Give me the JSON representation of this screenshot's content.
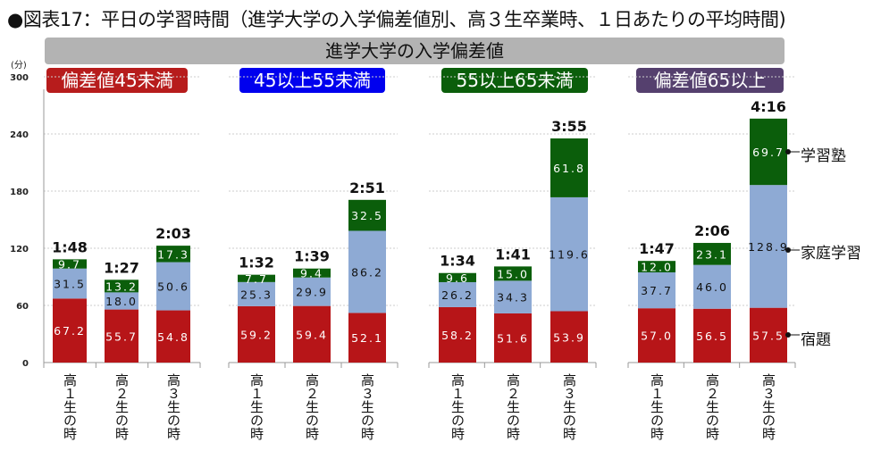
{
  "title": "●図表17：平日の学習時間（進学大学の入学偏差値別、高３生卒業時、１日あたりの平均時間)",
  "banner": "進学大学の入学偏差値",
  "groups": [
    {
      "label": "偏差値45未満",
      "color": "#b71c1c"
    },
    {
      "label": "45以上55未満",
      "color": "#0000ee"
    },
    {
      "label": "55以上65未満",
      "color": "#0b5e0b"
    },
    {
      "label": "偏差値65以上",
      "color": "#55406e"
    }
  ],
  "chart_data": {
    "type": "bar",
    "stacked": true,
    "ylabel": "(分)",
    "ylim": [
      0,
      300
    ],
    "yticks": [
      0,
      60,
      120,
      180,
      240,
      300
    ],
    "categories": [
      "高１生の時",
      "高２生の時",
      "高３生の時"
    ],
    "series": [
      {
        "name": "宿題",
        "color": "#b71518",
        "values": [
          [
            67.2,
            55.7,
            54.8
          ],
          [
            59.2,
            59.4,
            52.1
          ],
          [
            58.2,
            51.6,
            53.9
          ],
          [
            57.0,
            56.5,
            57.5
          ]
        ]
      },
      {
        "name": "家庭学習",
        "color": "#8eaad4",
        "values": [
          [
            31.5,
            18.0,
            50.6
          ],
          [
            25.3,
            29.9,
            86.2
          ],
          [
            26.2,
            34.3,
            119.6
          ],
          [
            37.7,
            46.0,
            128.9
          ]
        ]
      },
      {
        "name": "学習塾",
        "color": "#0b5e0b",
        "values": [
          [
            9.7,
            13.2,
            17.3
          ],
          [
            7.7,
            9.4,
            32.5
          ],
          [
            9.6,
            15.0,
            61.8
          ],
          [
            12.0,
            23.1,
            69.7
          ]
        ]
      }
    ],
    "totals": [
      [
        "1:48",
        "1:27",
        "2:03"
      ],
      [
        "1:32",
        "1:39",
        "2:51"
      ],
      [
        "1:34",
        "1:41",
        "3:55"
      ],
      [
        "1:47",
        "2:06",
        "4:16"
      ]
    ],
    "legend_placement": "right"
  }
}
